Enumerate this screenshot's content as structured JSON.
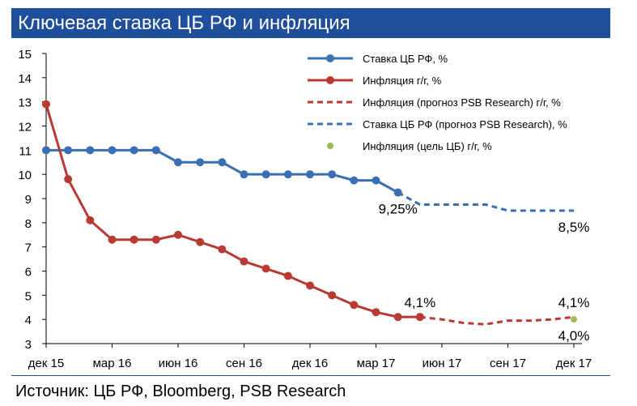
{
  "header": {
    "title": "Ключевая ставка ЦБ РФ и инфляция"
  },
  "footer": {
    "source": "Источник: ЦБ РФ, Bloomberg, PSB Research"
  },
  "colors": {
    "title_bg": "#1f4e9b",
    "rate": "#3a6fb3",
    "inflation": "#b83b33",
    "target": "#9bbb59",
    "axis": "#000000"
  },
  "chart_data": {
    "type": "line",
    "title": "Ключевая ставка ЦБ РФ и инфляция",
    "xlabel": "",
    "ylabel": "",
    "ylim": [
      3,
      15
    ],
    "yticks": [
      3,
      4,
      5,
      6,
      7,
      8,
      9,
      10,
      11,
      12,
      13,
      14,
      15
    ],
    "grid": false,
    "legend_position": "top-right",
    "x_ticks": [
      {
        "label": "дек 15",
        "t": 0
      },
      {
        "label": "мар 16",
        "t": 3
      },
      {
        "label": "июн 16",
        "t": 6
      },
      {
        "label": "сен 16",
        "t": 9
      },
      {
        "label": "дек 16",
        "t": 12
      },
      {
        "label": "мар 17",
        "t": 15
      },
      {
        "label": "июн 17",
        "t": 18
      },
      {
        "label": "сен 17",
        "t": 21
      },
      {
        "label": "дек 17",
        "t": 24
      }
    ],
    "series": [
      {
        "name": "Ставка ЦБ РФ, %",
        "color": "#3a6fb3",
        "style": "solid",
        "markers": true,
        "t": [
          0,
          1,
          2,
          3,
          4,
          5,
          6,
          7,
          8,
          9,
          10,
          11,
          12,
          13,
          14,
          15,
          16
        ],
        "values": [
          11,
          11,
          11,
          11,
          11,
          11,
          10.5,
          10.5,
          10.5,
          10,
          10,
          10,
          10,
          10,
          9.75,
          9.75,
          9.25
        ]
      },
      {
        "name": "Инфляция г/г, %",
        "color": "#b83b33",
        "style": "solid",
        "markers": true,
        "t": [
          0,
          1,
          2,
          3,
          4,
          5,
          6,
          7,
          8,
          9,
          10,
          11,
          12,
          13,
          14,
          15,
          16,
          17
        ],
        "values": [
          12.9,
          9.8,
          8.1,
          7.3,
          7.3,
          7.3,
          7.5,
          7.2,
          6.9,
          6.4,
          6.1,
          5.8,
          5.4,
          5.0,
          4.6,
          4.3,
          4.1,
          4.1
        ]
      },
      {
        "name": "Инфляция (прогноз PSB Research) г/г, %",
        "color": "#b83b33",
        "style": "dashed",
        "markers": false,
        "t": [
          17,
          18,
          19,
          20,
          21,
          22,
          23,
          24
        ],
        "values": [
          4.1,
          4.0,
          3.85,
          3.8,
          3.95,
          3.95,
          4.0,
          4.1
        ]
      },
      {
        "name": "Ставка ЦБ РФ (прогноз PSB Research), %",
        "color": "#3a6fb3",
        "style": "dashed",
        "markers": false,
        "t": [
          16,
          17,
          18,
          19,
          20,
          21,
          22,
          23,
          24
        ],
        "values": [
          9.25,
          8.75,
          8.75,
          8.75,
          8.75,
          8.5,
          8.5,
          8.5,
          8.5
        ]
      },
      {
        "name": "Инфляция (цель ЦБ) г/г, %",
        "color": "#9bbb59",
        "style": "point",
        "markers": true,
        "t": [
          24
        ],
        "values": [
          4.0
        ]
      }
    ],
    "annotations": [
      {
        "text": "9,25%",
        "t": 16,
        "value": 9.25,
        "anchor": "below"
      },
      {
        "text": "4,1%",
        "t": 17,
        "value": 4.1,
        "anchor": "above"
      },
      {
        "text": "8,5%",
        "t": 24,
        "value": 8.5,
        "anchor": "below"
      },
      {
        "text": "4,1%",
        "t": 24,
        "value": 4.1,
        "anchor": "above"
      },
      {
        "text": "4,0%",
        "t": 24,
        "value": 4.0,
        "anchor": "below"
      }
    ]
  }
}
